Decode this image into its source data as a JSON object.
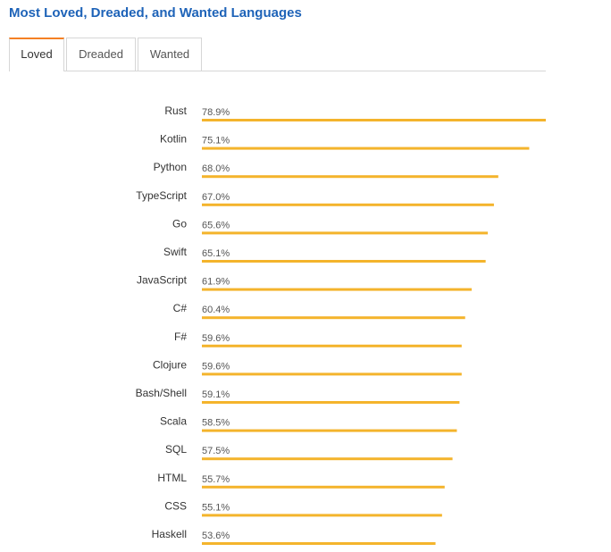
{
  "header": {
    "title": "Most Loved, Dreaded, and Wanted Languages"
  },
  "tabs": [
    {
      "label": "Loved",
      "active": true
    },
    {
      "label": "Dreaded",
      "active": false
    },
    {
      "label": "Wanted",
      "active": false
    }
  ],
  "colors": {
    "bar": "#f4b42c",
    "title": "#1e63b8",
    "active_tab_accent": "#f48024"
  },
  "chart_data": {
    "type": "bar",
    "orientation": "horizontal",
    "title": "",
    "xlabel": "",
    "ylabel": "",
    "xlim": [
      0,
      78.9
    ],
    "grid": false,
    "categories": [
      "Rust",
      "Kotlin",
      "Python",
      "TypeScript",
      "Go",
      "Swift",
      "JavaScript",
      "C#",
      "F#",
      "Clojure",
      "Bash/Shell",
      "Scala",
      "SQL",
      "HTML",
      "CSS",
      "Haskell"
    ],
    "values": [
      78.9,
      75.1,
      68.0,
      67.0,
      65.6,
      65.1,
      61.9,
      60.4,
      59.6,
      59.6,
      59.1,
      58.5,
      57.5,
      55.7,
      55.1,
      53.6
    ],
    "value_labels": [
      "78.9%",
      "75.1%",
      "68.0%",
      "67.0%",
      "65.6%",
      "65.1%",
      "61.9%",
      "60.4%",
      "59.6%",
      "59.6%",
      "59.1%",
      "58.5%",
      "57.5%",
      "55.7%",
      "55.1%",
      "53.6%"
    ]
  }
}
